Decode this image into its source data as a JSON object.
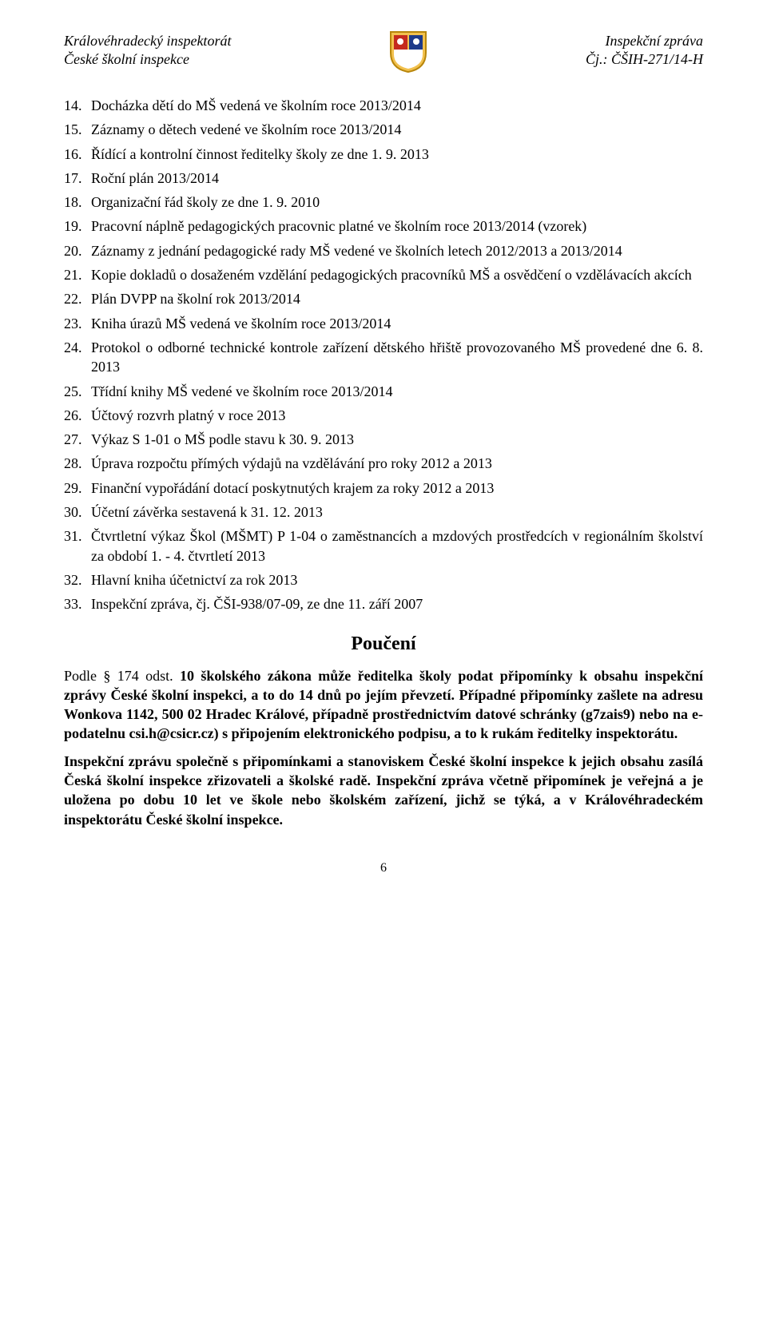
{
  "header": {
    "left1": "Královéhradecký inspektorát",
    "left2": "České školní inspekce",
    "right1": "Inspekční zpráva",
    "right2": "Čj.: ČŠIH-271/14-H"
  },
  "crest": {
    "colors": {
      "gold": "#f2c14e",
      "red": "#c52b1e",
      "blue": "#1e3a8a",
      "white": "#ffffff",
      "border": "#b8860b"
    }
  },
  "items": [
    {
      "n": "14.",
      "t": "Docházka dětí do MŠ vedená ve školním roce 2013/2014"
    },
    {
      "n": "15.",
      "t": "Záznamy o dětech vedené ve školním roce 2013/2014"
    },
    {
      "n": "16.",
      "t": "Řídící a kontrolní činnost ředitelky školy ze dne 1. 9. 2013"
    },
    {
      "n": "17.",
      "t": "Roční plán 2013/2014"
    },
    {
      "n": "18.",
      "t": "Organizační řád školy ze dne 1. 9. 2010"
    },
    {
      "n": "19.",
      "t": "Pracovní náplně pedagogických pracovnic platné ve školním roce 2013/2014 (vzorek)"
    },
    {
      "n": "20.",
      "t": "Záznamy z jednání pedagogické rady MŠ vedené ve školních letech 2012/2013 a 2013/2014"
    },
    {
      "n": "21.",
      "t": "Kopie dokladů o dosaženém vzdělání pedagogických pracovníků MŠ a osvědčení o vzdělávacích akcích"
    },
    {
      "n": "22.",
      "t": "Plán DVPP na školní rok 2013/2014"
    },
    {
      "n": "23.",
      "t": "Kniha úrazů MŠ vedená ve školním roce 2013/2014"
    },
    {
      "n": "24.",
      "t": "Protokol o odborné technické kontrole zařízení dětského hřiště provozovaného MŠ provedené dne 6. 8. 2013"
    },
    {
      "n": "25.",
      "t": "Třídní knihy MŠ vedené ve školním roce 2013/2014"
    },
    {
      "n": "26.",
      "t": "Účtový rozvrh platný v roce 2013"
    },
    {
      "n": "27.",
      "t": "Výkaz S 1-01 o MŠ podle stavu k 30. 9. 2013"
    },
    {
      "n": "28.",
      "t": "Úprava rozpočtu přímých výdajů na vzdělávání pro roky 2012 a 2013"
    },
    {
      "n": "29.",
      "t": "Finanční vypořádání dotací poskytnutých krajem za roky 2012 a 2013"
    },
    {
      "n": "30.",
      "t": "Účetní závěrka sestavená k 31. 12. 2013"
    },
    {
      "n": "31.",
      "t": "Čtvrtletní výkaz Škol (MŠMT) P 1-04 o zaměstnancích a mzdových prostředcích v regionálním školství za období 1. - 4. čtvrtletí 2013"
    },
    {
      "n": "32.",
      "t": "Hlavní kniha účetnictví za rok 2013"
    },
    {
      "n": "33.",
      "t": "Inspekční zpráva, čj. ČŠI-938/07-09, ze dne 11. září 2007"
    }
  ],
  "pouceni": {
    "title": "Poučení",
    "p1_plain": "Podle § 174 odst. ",
    "p1_bold": "10 školského zákona může ředitelka školy podat připomínky k obsahu inspekční zprávy České školní inspekci, a to do 14 dnů po jejím převzetí. Případné připomínky zašlete na adresu Wonkova 1142, 500 02 Hradec Králové, případně prostřednictvím datové schránky (g7zais9) nebo na e-podatelnu csi.h@csicr.cz) s připojením elektronického podpisu, a to k rukám ředitelky inspektorátu.",
    "p2": "Inspekční zprávu společně s připomínkami a stanoviskem České školní inspekce k jejich obsahu zasílá Česká školní inspekce zřizovateli a školské radě. Inspekční zpráva včetně připomínek je veřejná a je uložena po dobu 10 let ve škole nebo školském zařízení, jichž se týká, a v Královéhradeckém inspektorátu České školní inspekce."
  },
  "page_number": "6"
}
